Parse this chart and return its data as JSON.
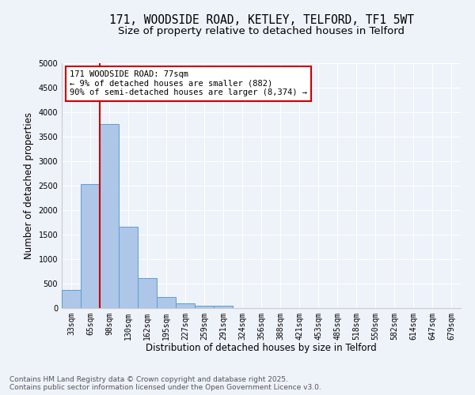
{
  "title_line1": "171, WOODSIDE ROAD, KETLEY, TELFORD, TF1 5WT",
  "title_line2": "Size of property relative to detached houses in Telford",
  "xlabel": "Distribution of detached houses by size in Telford",
  "ylabel": "Number of detached properties",
  "bar_labels": [
    "33sqm",
    "65sqm",
    "98sqm",
    "130sqm",
    "162sqm",
    "195sqm",
    "227sqm",
    "259sqm",
    "291sqm",
    "324sqm",
    "356sqm",
    "388sqm",
    "421sqm",
    "453sqm",
    "485sqm",
    "518sqm",
    "550sqm",
    "582sqm",
    "614sqm",
    "647sqm",
    "679sqm"
  ],
  "values": [
    370,
    2530,
    3760,
    1660,
    620,
    220,
    95,
    50,
    50,
    0,
    0,
    0,
    0,
    0,
    0,
    0,
    0,
    0,
    0,
    0,
    0
  ],
  "bar_color": "#aec6e8",
  "bar_edge_color": "#5a9fd4",
  "ylim": [
    0,
    5000
  ],
  "yticks": [
    0,
    500,
    1000,
    1500,
    2000,
    2500,
    3000,
    3500,
    4000,
    4500,
    5000
  ],
  "vline_color": "#cc0000",
  "annotation_text": "171 WOODSIDE ROAD: 77sqm\n← 9% of detached houses are smaller (882)\n90% of semi-detached houses are larger (8,374) →",
  "annotation_box_color": "#ffffff",
  "annotation_box_edge": "#cc0000",
  "footer_line1": "Contains HM Land Registry data © Crown copyright and database right 2025.",
  "footer_line2": "Contains public sector information licensed under the Open Government Licence v3.0.",
  "bg_color": "#eef2f9",
  "plot_bg_color": "#eef2f9",
  "grid_color": "#ffffff",
  "title_fontsize": 10.5,
  "subtitle_fontsize": 9.5,
  "axis_label_fontsize": 8.5,
  "tick_fontsize": 7,
  "annotation_fontsize": 7.5,
  "footer_fontsize": 6.5
}
